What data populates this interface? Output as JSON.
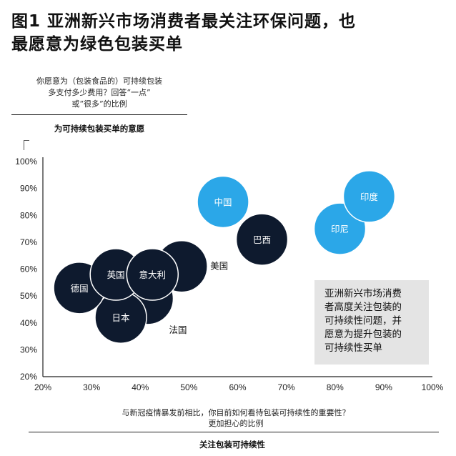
{
  "title_lines": [
    "图1 亚洲新兴市场消费者最关注环保问题，也",
    "最愿意为绿色包装买单"
  ],
  "y_question_lines": [
    "你愿意为（包装食品的）可持续包装",
    "多支付多少费用？回答“一点”",
    "或“很多”的比例"
  ],
  "y_subtitle": "为可持续包装买单的意愿",
  "x_question_lines": [
    "与新冠疫情暴发前相比，你目前如何看待包装可持续性的重要性？",
    "更加担心的比例"
  ],
  "x_subtitle": "关注包装可持续性",
  "callout_lines": [
    "亚洲新兴市场消费",
    "者高度关注包装的",
    "可持续性问题，并",
    "愿意为提升包装的",
    "可持续性买单"
  ],
  "colors": {
    "dark": "#0e1a2e",
    "blue": "#2ba7e8",
    "axis": "#222222",
    "callout_bg": "#e4e4e4"
  },
  "chart_data": {
    "type": "scatter",
    "x_ticks": [
      "20%",
      "30%",
      "40%",
      "50%",
      "60%",
      "70%",
      "80%",
      "90%",
      "100%"
    ],
    "y_ticks": [
      "20%",
      "30%",
      "40%",
      "50%",
      "60%",
      "70%",
      "80%",
      "90%",
      "100%"
    ],
    "xlim": [
      20,
      100
    ],
    "ylim": [
      20,
      100
    ],
    "grid": false,
    "points": [
      {
        "label": "美国",
        "x": 48.5,
        "y": 61,
        "group": "dark",
        "label_position": "right"
      },
      {
        "label": "法国",
        "x": 41.5,
        "y": 49,
        "group": "dark",
        "label_position": "below-right"
      },
      {
        "label": "日本",
        "x": 36,
        "y": 42,
        "group": "dark",
        "label_position": "inside"
      },
      {
        "label": "德国",
        "x": 27.5,
        "y": 53,
        "group": "dark",
        "label_position": "inside"
      },
      {
        "label": "英国",
        "x": 35,
        "y": 58,
        "group": "dark",
        "label_position": "inside"
      },
      {
        "label": "意大利",
        "x": 42.5,
        "y": 58,
        "group": "dark",
        "label_position": "inside"
      },
      {
        "label": "巴西",
        "x": 65,
        "y": 71,
        "group": "dark",
        "label_position": "inside"
      },
      {
        "label": "中国",
        "x": 57,
        "y": 85,
        "group": "blue",
        "label_position": "inside"
      },
      {
        "label": "印尼",
        "x": 81,
        "y": 75,
        "group": "blue",
        "label_position": "inside"
      },
      {
        "label": "印度",
        "x": 87,
        "y": 87,
        "group": "blue",
        "label_position": "inside"
      }
    ]
  }
}
